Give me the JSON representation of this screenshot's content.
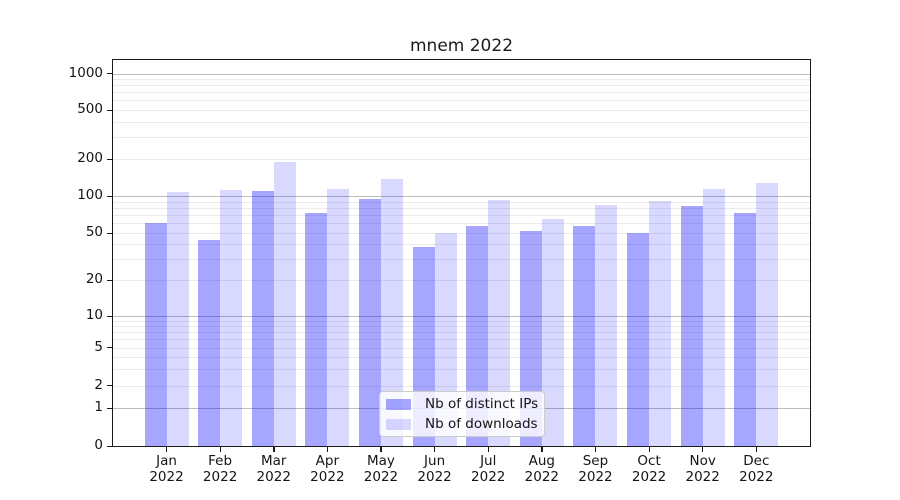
{
  "title": "mnem 2022",
  "chart_data": {
    "type": "bar",
    "title": "mnem 2022",
    "categories": [
      "Jan 2022",
      "Feb 2022",
      "Mar 2022",
      "Apr 2022",
      "May 2022",
      "Jun 2022",
      "Jul 2022",
      "Aug 2022",
      "Sep 2022",
      "Oct 2022",
      "Nov 2022",
      "Dec 2022"
    ],
    "x_tick_line1": [
      "Jan",
      "Feb",
      "Mar",
      "Apr",
      "May",
      "Jun",
      "Jul",
      "Aug",
      "Sep",
      "Oct",
      "Nov",
      "Dec"
    ],
    "x_tick_line2": [
      "2022",
      "2022",
      "2022",
      "2022",
      "2022",
      "2022",
      "2022",
      "2022",
      "2022",
      "2022",
      "2022",
      "2022"
    ],
    "series": [
      {
        "name": "Nb of distinct IPs",
        "color": "rgba(0,0,255,0.35)",
        "color_hex": "#a6a6ff",
        "values": [
          60,
          44,
          110,
          73,
          94,
          38,
          57,
          52,
          57,
          50,
          83,
          73
        ]
      },
      {
        "name": "Nb of downloads",
        "color": "rgba(0,0,255,0.15)",
        "color_hex": "#d9d9ff",
        "values": [
          108,
          112,
          190,
          115,
          137,
          50,
          93,
          65,
          84,
          91,
          114,
          128
        ]
      }
    ],
    "yscale": "symlog",
    "yticks": [
      0,
      1,
      2,
      5,
      10,
      20,
      50,
      100,
      200,
      500,
      1000
    ],
    "ylim": [
      0,
      1290
    ],
    "grid": "horizontal major+minor",
    "legend_position": "lower center",
    "colors": {
      "major_grid": "#bdbdbd",
      "minor_grid": "#ebebeb",
      "axis": "#1a1a1a"
    }
  }
}
